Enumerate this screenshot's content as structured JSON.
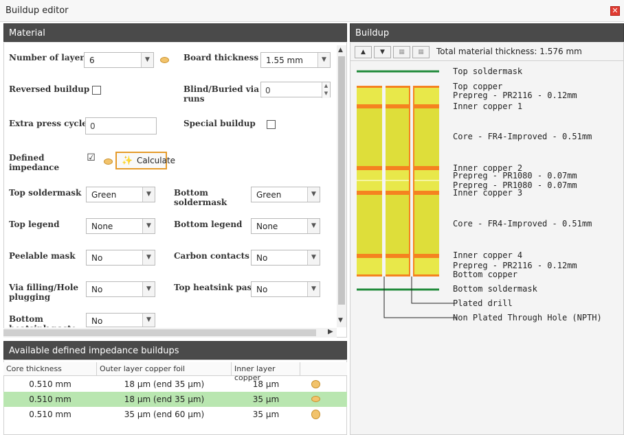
{
  "window": {
    "title": "Buildup editor",
    "close_icon": "close-icon"
  },
  "material": {
    "header": "Material",
    "fields": {
      "num_layers_label": "Number of layers",
      "num_layers_value": "6",
      "board_thickness_label": "Board thickness",
      "board_thickness_value": "1.55 mm",
      "reversed_label": "Reversed buildup",
      "blind_label": "Blind/Buried via runs",
      "blind_value": "0",
      "press_label": "Extra press cycles",
      "press_value": "0",
      "special_label": "Special buildup",
      "impedance_label": "Defined impedance",
      "impedance_checked": "☑",
      "calculate_label": "Calculate",
      "top_soldermask_label": "Top soldermask",
      "top_soldermask_value": "Green",
      "bottom_soldermask_label": "Bottom soldermask",
      "bottom_soldermask_value": "Green",
      "top_legend_label": "Top legend",
      "top_legend_value": "None",
      "bottom_legend_label": "Bottom legend",
      "bottom_legend_value": "None",
      "peelable_label": "Peelable mask",
      "peelable_value": "No",
      "carbon_label": "Carbon contacts",
      "carbon_value": "No",
      "via_label": "Via filling/Hole plugging",
      "via_value": "No",
      "top_heatsink_label": "Top heatsink paste",
      "top_heatsink_value": "No",
      "bottom_heatsink_label": "Bottom heatsink paste",
      "bottom_heatsink_value": "No"
    }
  },
  "impedance": {
    "header": "Available defined impedance buildups",
    "columns": [
      "Core thickness",
      "Outer layer copper foil",
      "Inner layer copper"
    ],
    "rows": [
      {
        "core": "0.510 mm",
        "outer": "18 µm (end 35 µm)",
        "inner": "18 µm",
        "selected": false
      },
      {
        "core": "0.510 mm",
        "outer": "18 µm (end 35 µm)",
        "inner": "35 µm",
        "selected": true
      },
      {
        "core": "0.510 mm",
        "outer": "35 µm (end 60 µm)",
        "inner": "35 µm",
        "selected": false
      }
    ]
  },
  "buildup": {
    "header": "Buildup",
    "total_thickness": "Total material thickness: 1.576 mm",
    "labels": {
      "top_soldermask": "Top soldermask",
      "top_copper": "Top copper",
      "prepreg_top": "Prepreg - PR2116 - 0.12mm",
      "inner1": "Inner copper 1",
      "core1": "Core - FR4-Improved - 0.51mm",
      "inner2": "Inner copper 2",
      "prepreg_m1": "Prepreg - PR1080 - 0.07mm",
      "prepreg_m2": "Prepreg - PR1080 - 0.07mm",
      "inner3": "Inner copper 3",
      "core2": "Core - FR4-Improved - 0.51mm",
      "inner4": "Inner copper 4",
      "prepreg_bot": "Prepreg - PR2116 - 0.12mm",
      "bottom_copper": "Bottom copper",
      "bottom_soldermask": "Bottom soldermask",
      "plated_drill": "Plated drill",
      "npth": "Non Plated Through Hole (NPTH)"
    },
    "colors": {
      "soldermask": "#1f8a3a",
      "copper": "#f58220",
      "dielectric": "#dede3a",
      "prepreg": "#e8e84a"
    }
  },
  "colors": {
    "header_bg": "#4a4a4a",
    "accent": "#e59a2a",
    "selected_row": "#b9e6b0"
  }
}
